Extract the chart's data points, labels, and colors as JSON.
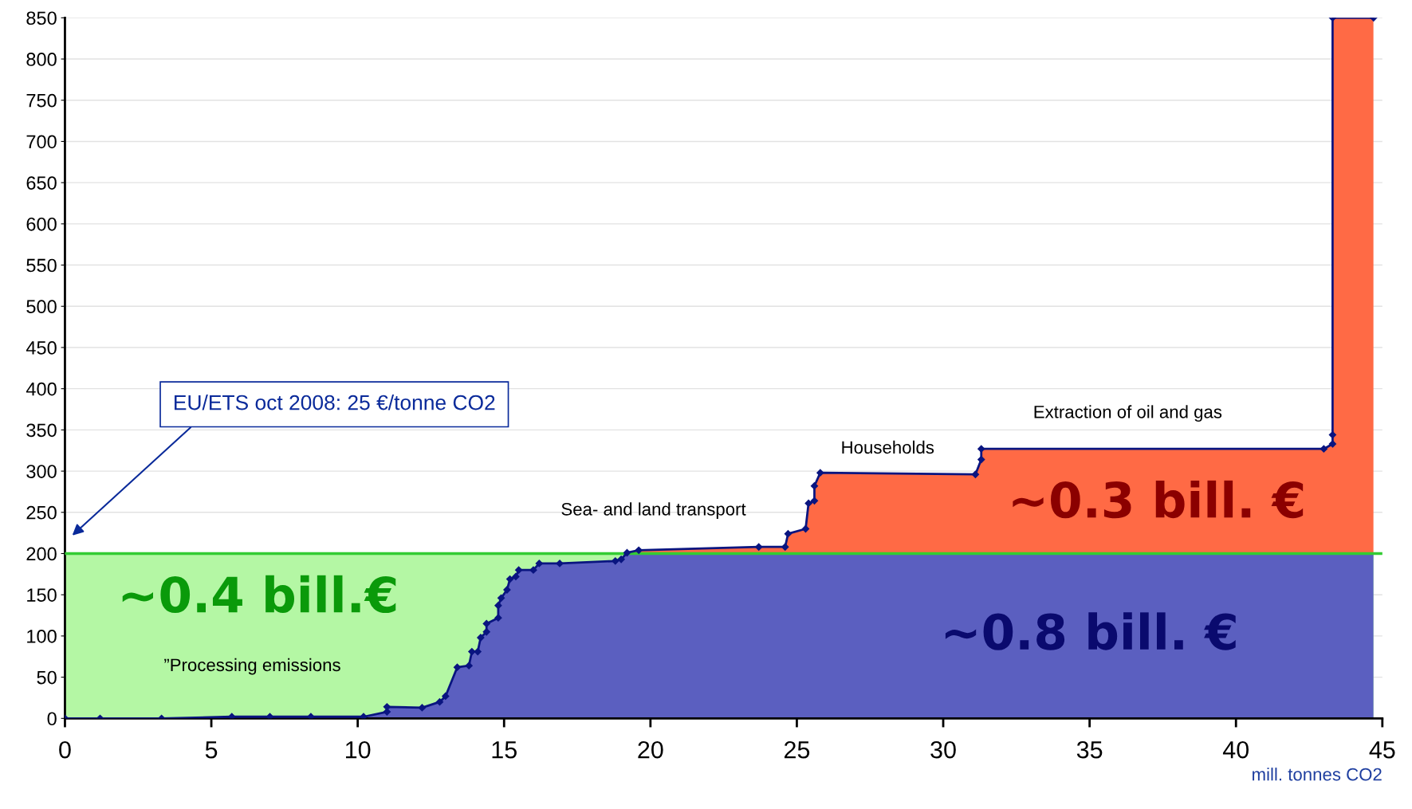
{
  "chart_data": {
    "type": "area",
    "xlabel": "mill. tonnes CO2",
    "x": [
      0,
      1.2,
      3.3,
      5.7,
      7.0,
      8.4,
      10.2,
      11.0,
      11.0,
      12.2,
      12.8,
      13.0,
      13.4,
      13.8,
      13.9,
      14.1,
      14.2,
      14.4,
      14.4,
      14.8,
      14.8,
      14.9,
      15.1,
      15.2,
      15.4,
      15.5,
      16.0,
      16.2,
      16.9,
      18.8,
      19.0,
      19.2,
      19.6,
      23.7,
      24.6,
      24.7,
      25.3,
      25.4,
      25.6,
      25.6,
      25.8,
      31.1,
      31.3,
      31.3,
      43.0,
      43.3,
      43.3,
      43.3,
      44.7
    ],
    "series": [
      {
        "color": "#5b5fc0",
        "values": [
          0,
          0,
          0,
          2,
          2,
          2,
          2,
          8,
          14,
          13,
          20,
          27,
          62,
          64,
          81,
          81,
          98,
          105,
          115,
          122,
          137,
          146,
          156,
          169,
          172,
          180,
          180,
          188,
          188,
          191,
          193,
          201,
          204,
          208,
          208,
          224,
          230,
          261,
          264,
          282,
          298,
          296,
          314,
          327,
          327,
          333,
          344,
          850,
          850
        ]
      }
    ],
    "ref_lines": [
      {
        "axis": "y",
        "value": 200,
        "color": "#33cc33"
      }
    ],
    "bands": [
      {
        "axis": "y",
        "from": 0,
        "to": 200,
        "color": "#b4f7a4"
      }
    ],
    "annotations": [
      "EU/ETS oct 2008: 25 €/tonne CO2",
      "~0.4 bill.€",
      "”Processing emissions",
      "~0.8 bill. €",
      "Sea- and land transport",
      "Households",
      "Extraction of oil and gas",
      "~0.3 bill. €"
    ],
    "xlim": [
      0,
      45
    ],
    "xticks": [
      0,
      5,
      10,
      15,
      20,
      25,
      30,
      35,
      40,
      45
    ],
    "ylim": [
      0,
      850
    ],
    "yticks": [
      0,
      50,
      100,
      150,
      200,
      250,
      300,
      350,
      400,
      450,
      500,
      550,
      600,
      650,
      700,
      750,
      800,
      850
    ],
    "grid": "y",
    "marker": "diamond",
    "line_style": "solid"
  }
}
